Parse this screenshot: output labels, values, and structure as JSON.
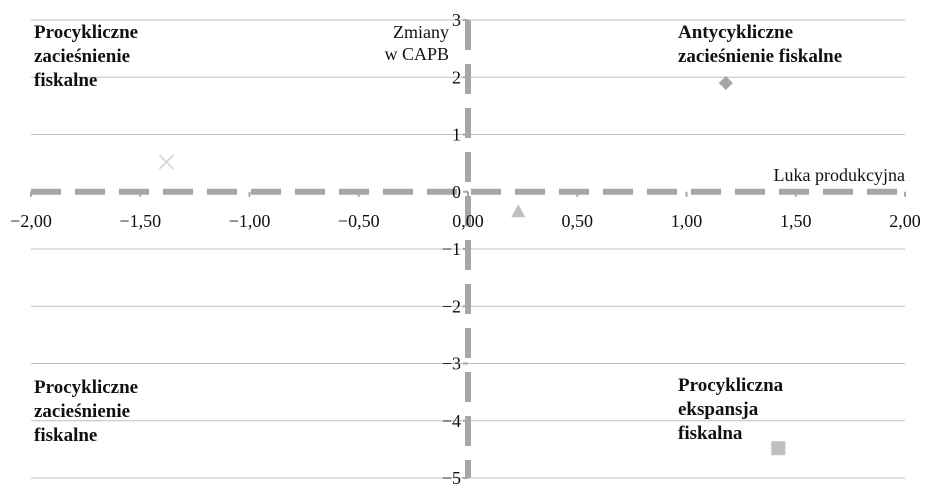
{
  "chart_data": {
    "type": "scatter",
    "title": "",
    "xlabel": "Luka produkcyjna",
    "ylabel": "Zmiany\nw CAPB",
    "xlim": [
      -2,
      2
    ],
    "ylim": [
      -5,
      3
    ],
    "x_ticks": [
      {
        "value": -2,
        "label": "−2,00"
      },
      {
        "value": -1.5,
        "label": "−1,50"
      },
      {
        "value": -1,
        "label": "−1,00"
      },
      {
        "value": -0.5,
        "label": "−0,50"
      },
      {
        "value": 0,
        "label": "0,00"
      },
      {
        "value": 0.5,
        "label": "0,50"
      },
      {
        "value": 1,
        "label": "1,00"
      },
      {
        "value": 1.5,
        "label": "1,50"
      },
      {
        "value": 2,
        "label": "2,00"
      }
    ],
    "y_ticks": [
      {
        "value": 3,
        "label": "3"
      },
      {
        "value": 2,
        "label": "2"
      },
      {
        "value": 1,
        "label": "1"
      },
      {
        "value": 0,
        "label": "0"
      },
      {
        "value": -1,
        "label": "−1"
      },
      {
        "value": -2,
        "label": "−2"
      },
      {
        "value": -3,
        "label": "−3"
      },
      {
        "value": -4,
        "label": "−4"
      },
      {
        "value": -5,
        "label": "−5"
      }
    ],
    "grid": "horizontal",
    "points": [
      {
        "x": 1.18,
        "y": 1.9,
        "marker": "diamond",
        "color": "#a6a6a6"
      },
      {
        "x": -1.38,
        "y": 0.52,
        "marker": "x",
        "color": "#d0d0d0"
      },
      {
        "x": 0.23,
        "y": -0.34,
        "marker": "triangle",
        "color": "#bfbfbf"
      },
      {
        "x": 1.42,
        "y": -4.48,
        "marker": "square",
        "color": "#bfbfbf"
      }
    ],
    "quadrant_labels": {
      "top_left": "Procykliczne\nzacieśnienie\nfiskalne",
      "top_right": "Antycykliczne\nzacieśnienie fiskalne",
      "bottom_left": "Procykliczne\nzacieśnienie\nfiskalne",
      "bottom_right": "Procykliczna\nekspansja\nfiskalna"
    },
    "colors": {
      "axis_dash": "#a6a6a6",
      "gridline": "#bfbfbf",
      "text": "#111111"
    }
  }
}
